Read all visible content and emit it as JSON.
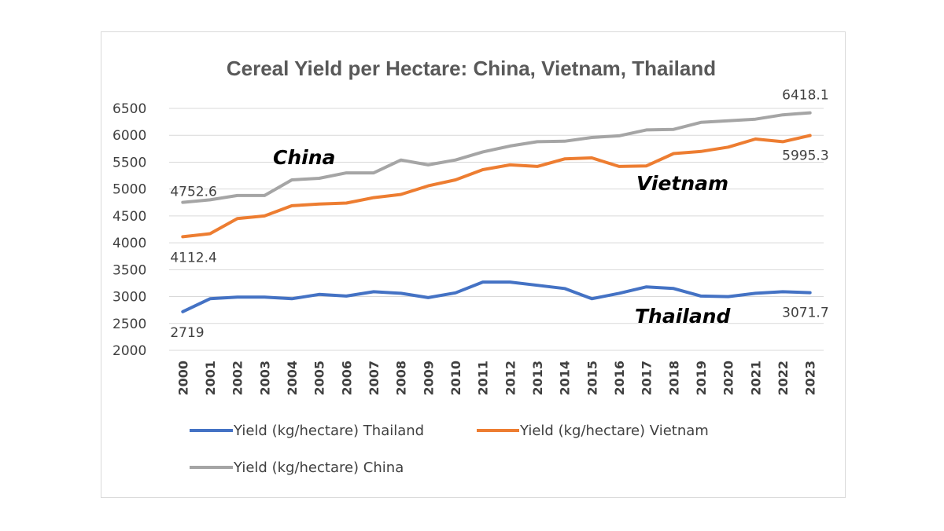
{
  "chart_data": {
    "type": "line",
    "title": "Cereal Yield per Hectare: China, Vietnam, Thailand",
    "xlabel": "",
    "ylabel": "",
    "ylim": [
      2000,
      6500
    ],
    "yticks": [
      "6500",
      "6000",
      "5500",
      "5000",
      "4500",
      "4000",
      "3500",
      "3000",
      "2500",
      "2000"
    ],
    "categories": [
      "2000",
      "2001",
      "2002",
      "2003",
      "2004",
      "2005",
      "2006",
      "2007",
      "2008",
      "2009",
      "2010",
      "2011",
      "2012",
      "2013",
      "2014",
      "2015",
      "2016",
      "2017",
      "2018",
      "2019",
      "2020",
      "2021",
      "2022",
      "2023"
    ],
    "series": [
      {
        "name": "Yield (kg/hectare) Thailand",
        "color": "#4472c4",
        "values": [
          2719,
          2960,
          2990,
          2990,
          2960,
          3040,
          3010,
          3090,
          3060,
          2980,
          3070,
          3270,
          3270,
          3210,
          3150,
          2960,
          3060,
          3180,
          3150,
          3010,
          3000,
          3060,
          3090,
          3071.7
        ]
      },
      {
        "name": "Yield (kg/hectare) Vietnam",
        "color": "#ed7d31",
        "values": [
          4112.4,
          4170,
          4450,
          4500,
          4690,
          4720,
          4740,
          4840,
          4900,
          5060,
          5170,
          5360,
          5450,
          5420,
          5560,
          5580,
          5420,
          5430,
          5660,
          5700,
          5780,
          5930,
          5880,
          5995.3
        ]
      },
      {
        "name": "Yield (kg/hectare) China",
        "color": "#a5a5a5",
        "values": [
          4752.6,
          4800,
          4880,
          4880,
          5170,
          5200,
          5300,
          5300,
          5540,
          5450,
          5540,
          5690,
          5800,
          5880,
          5890,
          5960,
          5990,
          6100,
          6110,
          6240,
          6270,
          6300,
          6380,
          6418.1
        ]
      }
    ],
    "data_labels": [
      {
        "text": "4752.6",
        "series": 2,
        "index": 0
      },
      {
        "text": "6418.1",
        "series": 2,
        "index": 23
      },
      {
        "text": "4112.4",
        "series": 1,
        "index": 0
      },
      {
        "text": "5995.3",
        "series": 1,
        "index": 23
      },
      {
        "text": "2719",
        "series": 0,
        "index": 0
      },
      {
        "text": "3071.7",
        "series": 0,
        "index": 23
      }
    ],
    "series_annotations": [
      "China",
      "Vietnam",
      "Thailand"
    ],
    "legend": {
      "position": "bottom",
      "entries": [
        "Yield (kg/hectare) Thailand",
        "Yield (kg/hectare) Vietnam",
        "Yield (kg/hectare) China"
      ]
    },
    "grid": true
  }
}
